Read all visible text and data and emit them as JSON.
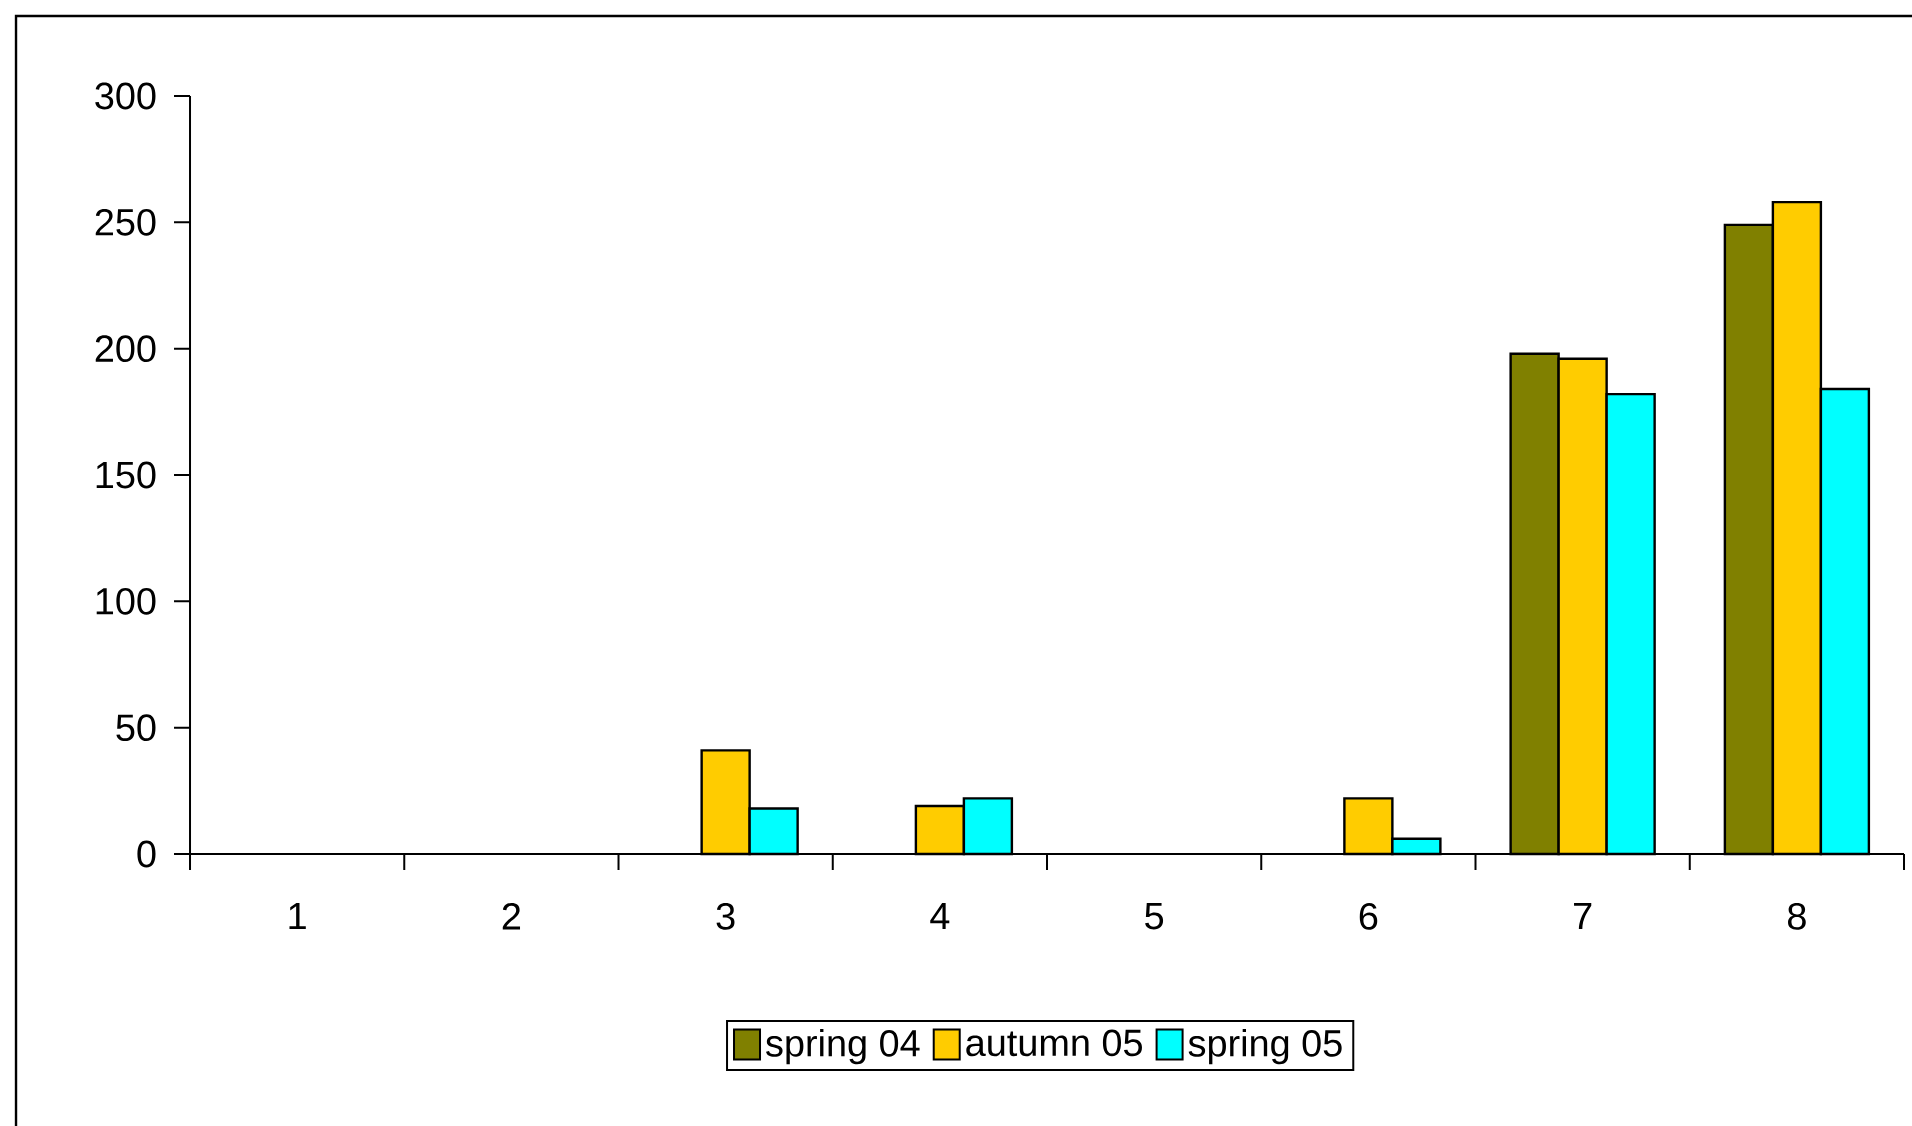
{
  "chart_data": {
    "type": "bar",
    "categories": [
      "1",
      "2",
      "3",
      "4",
      "5",
      "6",
      "7",
      "8"
    ],
    "series": [
      {
        "name": "spring 04",
        "color": "#808000",
        "values": [
          null,
          null,
          null,
          null,
          null,
          null,
          198,
          249
        ]
      },
      {
        "name": "autumn 05",
        "color": "#ffcc00",
        "values": [
          null,
          null,
          41,
          19,
          null,
          22,
          196,
          258
        ]
      },
      {
        "name": "spring 05",
        "color": "#00ffff",
        "values": [
          null,
          null,
          18,
          22,
          null,
          6,
          182,
          184
        ]
      }
    ],
    "ylim": [
      0,
      300
    ],
    "yticks": [
      0,
      50,
      100,
      150,
      200,
      250,
      300
    ],
    "grid": false,
    "legend": "bottom"
  }
}
